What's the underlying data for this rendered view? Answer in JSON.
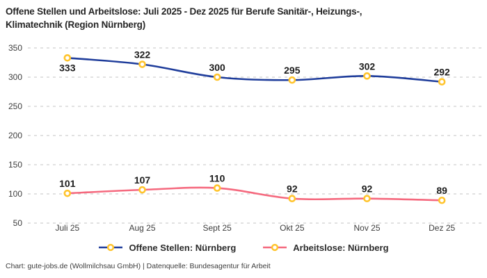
{
  "title": {
    "line1": "Offene Stellen und Arbeitslose: Juli 2025 - Dez 2025 für Berufe Sanitär-, Heizungs-,",
    "line2": "Klimatechnik (Region Nürnberg)"
  },
  "chart_data": {
    "type": "line",
    "title": "Offene Stellen und Arbeitslose: Juli 2025 - Dez 2025 für Berufe Sanitär-, Heizungs-, Klimatechnik (Region Nürnberg)",
    "categories": [
      "Juli 25",
      "Aug 25",
      "Sept 25",
      "Okt 25",
      "Nov 25",
      "Dez 25"
    ],
    "series": [
      {
        "name": "Offene Stellen: Nürnberg",
        "values": [
          333,
          322,
          300,
          295,
          302,
          292
        ],
        "color": "#1F3D9B"
      },
      {
        "name": "Arbeitslose: Nürnberg",
        "values": [
          101,
          107,
          110,
          92,
          92,
          89
        ],
        "color": "#F5697E"
      }
    ],
    "yticks": [
      50,
      100,
      150,
      200,
      250,
      300,
      350
    ],
    "ylim": [
      50,
      350
    ],
    "xlabel": "",
    "ylabel": "",
    "grid": "dashed-horizontal",
    "legend_position": "bottom",
    "marker": {
      "fill": "#FFFFFF",
      "stroke": "#FFC42D"
    },
    "colors": {
      "grid": "#CFCFCF",
      "tick_text": "#3D3D3D",
      "data_label": "#1C1C1C"
    }
  },
  "footer": {
    "text": "Chart: gute-jobs.de (Wollmilchsau GmbH) | Datenquelle: Bundesagentur für Arbeit"
  }
}
